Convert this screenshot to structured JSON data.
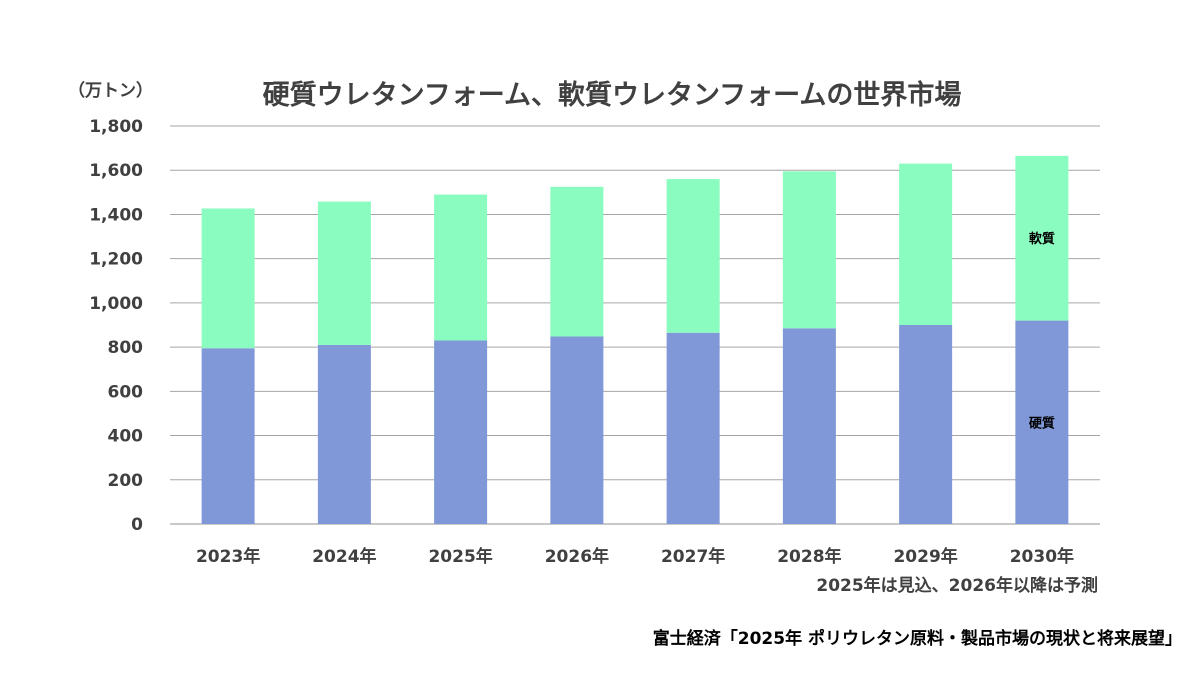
{
  "chart_data": {
    "type": "bar",
    "stacked": true,
    "title": "硬質ウレタンフォーム、軟質ウレタンフォームの世界市場",
    "unit_label": "（万トン）",
    "categories": [
      "2023年",
      "2024年",
      "2025年",
      "2026年",
      "2027年",
      "2028年",
      "2029年",
      "2030年"
    ],
    "series": [
      {
        "name": "硬質",
        "color": "#8097d8",
        "values": [
          795,
          810,
          830,
          848,
          865,
          885,
          900,
          920
        ]
      },
      {
        "name": "軟質",
        "color": "#8bfcbf",
        "values": [
          632,
          648,
          660,
          677,
          695,
          710,
          730,
          745
        ]
      }
    ],
    "ylim": [
      0,
      1800
    ],
    "yticks": [
      0,
      200,
      400,
      600,
      800,
      1000,
      1200,
      1400,
      1600,
      1800
    ],
    "ytick_labels": [
      "0",
      "200",
      "400",
      "600",
      "800",
      "1,000",
      "1,200",
      "1,400",
      "1,600",
      "1,800"
    ],
    "grid": true,
    "note": "2025年は見込、2026年以降は予測",
    "source": "富士経済「2025年 ポリウレタン原料・製品市場の現状と将来展望」"
  }
}
